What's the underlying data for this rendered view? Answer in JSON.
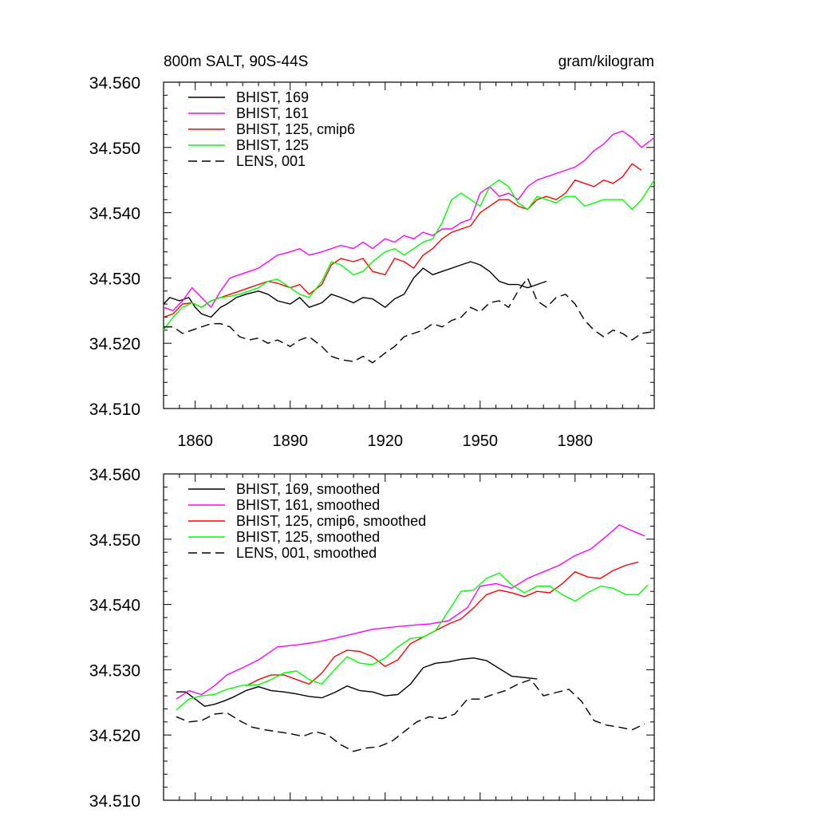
{
  "title_left": "800m SALT, 90S-44S",
  "title_right": "gram/kilogram",
  "chart_data": [
    {
      "type": "line",
      "xlim": [
        1850,
        2005
      ],
      "ylim": [
        34.51,
        34.56
      ],
      "xticks": [
        1860,
        1890,
        1920,
        1950,
        1980
      ],
      "yticks": [
        34.51,
        34.52,
        34.53,
        34.54,
        34.55,
        34.56
      ],
      "xtick_labels": [
        "1860",
        "1890",
        "1920",
        "1950",
        "1980"
      ],
      "ytick_labels": [
        "34.510",
        "34.520",
        "34.530",
        "34.540",
        "34.550",
        "34.560"
      ],
      "legend_position": "top-left",
      "series": [
        {
          "name": "BHIST, 169",
          "color": "#000000",
          "dash": "solid",
          "x": [
            1850,
            1852,
            1855,
            1858,
            1860,
            1862,
            1865,
            1868,
            1870,
            1873,
            1876,
            1880,
            1883,
            1886,
            1890,
            1893,
            1896,
            1900,
            1903,
            1906,
            1910,
            1913,
            1916,
            1920,
            1923,
            1926,
            1929,
            1932,
            1935,
            1938,
            1941,
            1944,
            1947,
            1950,
            1953,
            1956,
            1959,
            1962,
            1965,
            1968,
            1971
          ],
          "y": [
            34.526,
            34.527,
            34.5265,
            34.527,
            34.5255,
            34.5245,
            34.524,
            34.5255,
            34.526,
            34.527,
            34.5275,
            34.528,
            34.5275,
            34.5265,
            34.526,
            34.527,
            34.5255,
            34.5262,
            34.5275,
            34.527,
            34.5262,
            34.527,
            34.5268,
            34.5255,
            34.5268,
            34.5275,
            34.53,
            34.5315,
            34.5305,
            34.531,
            34.5315,
            34.532,
            34.5325,
            34.532,
            34.531,
            34.5295,
            34.529,
            34.529,
            34.5285,
            34.529,
            34.5295
          ]
        },
        {
          "name": "BHIST, 161",
          "color": "#ff00ff",
          "dash": "solid",
          "x": [
            1850,
            1853,
            1856,
            1859,
            1862,
            1865,
            1868,
            1871,
            1874,
            1877,
            1880,
            1883,
            1886,
            1890,
            1893,
            1896,
            1900,
            1903,
            1906,
            1910,
            1913,
            1916,
            1920,
            1923,
            1926,
            1929,
            1932,
            1935,
            1938,
            1941,
            1944,
            1947,
            1950,
            1953,
            1956,
            1959,
            1962,
            1965,
            1968,
            1971,
            1974,
            1977,
            1980,
            1983,
            1986,
            1989,
            1992,
            1995,
            1998,
            2001,
            2005
          ],
          "y": [
            34.5255,
            34.525,
            34.5265,
            34.5285,
            34.527,
            34.5255,
            34.528,
            34.53,
            34.5305,
            34.531,
            34.5315,
            34.5325,
            34.5335,
            34.534,
            34.5345,
            34.5335,
            34.534,
            34.5345,
            34.535,
            34.5345,
            34.5355,
            34.5345,
            34.536,
            34.5355,
            34.5365,
            34.536,
            34.537,
            34.5365,
            34.5375,
            34.5375,
            34.5385,
            34.539,
            34.543,
            34.544,
            34.5425,
            34.543,
            34.542,
            34.544,
            34.545,
            34.5455,
            34.546,
            34.5465,
            34.547,
            34.548,
            34.5495,
            34.5505,
            34.552,
            34.5525,
            34.5515,
            34.55,
            34.5515
          ]
        },
        {
          "name": "BHIST, 125, cmip6",
          "color": "#ff0000",
          "dash": "solid",
          "x": [
            1850,
            1853,
            1856,
            1859,
            1862,
            1865,
            1868,
            1871,
            1874,
            1877,
            1880,
            1883,
            1886,
            1890,
            1893,
            1896,
            1900,
            1903,
            1906,
            1910,
            1913,
            1916,
            1920,
            1923,
            1926,
            1929,
            1932,
            1935,
            1938,
            1941,
            1944,
            1947,
            1950,
            1953,
            1956,
            1959,
            1962,
            1965,
            1968,
            1971,
            1974,
            1977,
            1980,
            1983,
            1986,
            1989,
            1992,
            1995,
            1998,
            2001
          ],
          "y": [
            34.524,
            34.5245,
            34.526,
            34.5262,
            34.5255,
            34.5265,
            34.527,
            34.5275,
            34.528,
            34.5285,
            34.529,
            34.5295,
            34.5292,
            34.5285,
            34.529,
            34.5275,
            34.529,
            34.532,
            34.533,
            34.5325,
            34.533,
            34.531,
            34.5305,
            34.533,
            34.5325,
            34.5315,
            34.5335,
            34.5345,
            34.536,
            34.537,
            34.5375,
            34.538,
            34.54,
            34.541,
            34.542,
            34.542,
            34.541,
            34.5405,
            34.542,
            34.5425,
            34.542,
            34.543,
            34.545,
            34.5445,
            34.544,
            34.545,
            34.5445,
            34.5455,
            34.5475,
            34.5465
          ]
        },
        {
          "name": "BHIST, 125",
          "color": "#00ff00",
          "dash": "solid",
          "x": [
            1850,
            1853,
            1856,
            1859,
            1862,
            1865,
            1868,
            1871,
            1874,
            1877,
            1880,
            1883,
            1886,
            1890,
            1893,
            1896,
            1900,
            1903,
            1906,
            1910,
            1913,
            1916,
            1920,
            1923,
            1926,
            1929,
            1932,
            1935,
            1938,
            1941,
            1944,
            1947,
            1950,
            1953,
            1956,
            1959,
            1962,
            1965,
            1968,
            1971,
            1974,
            1977,
            1980,
            1983,
            1986,
            1989,
            1992,
            1995,
            1998,
            2001,
            2005
          ],
          "y": [
            34.522,
            34.524,
            34.5255,
            34.5262,
            34.5255,
            34.5265,
            34.527,
            34.5272,
            34.5275,
            34.528,
            34.5285,
            34.5295,
            34.5298,
            34.5285,
            34.5275,
            34.527,
            34.5295,
            34.5325,
            34.532,
            34.5305,
            34.531,
            34.5325,
            34.534,
            34.5345,
            34.5335,
            34.5345,
            34.5355,
            34.536,
            34.5385,
            34.542,
            34.543,
            34.542,
            34.541,
            34.544,
            34.545,
            34.544,
            34.5415,
            34.5405,
            34.5425,
            34.542,
            34.5415,
            34.5425,
            34.5425,
            34.541,
            34.5415,
            34.542,
            34.542,
            34.542,
            34.5405,
            34.542,
            34.545
          ]
        },
        {
          "name": "LENS, 001",
          "color": "#000000",
          "dash": "dashed",
          "x": [
            1850,
            1853,
            1856,
            1859,
            1862,
            1865,
            1868,
            1871,
            1874,
            1877,
            1880,
            1883,
            1886,
            1890,
            1893,
            1896,
            1900,
            1903,
            1906,
            1910,
            1913,
            1916,
            1920,
            1923,
            1926,
            1929,
            1932,
            1935,
            1938,
            1941,
            1944,
            1947,
            1950,
            1953,
            1956,
            1959,
            1962,
            1965,
            1968,
            1971,
            1974,
            1977,
            1980,
            1983,
            1986,
            1989,
            1992,
            1995,
            1998,
            2001,
            2005
          ],
          "y": [
            34.5225,
            34.5225,
            34.5215,
            34.522,
            34.5225,
            34.523,
            34.523,
            34.5225,
            34.521,
            34.5205,
            34.5208,
            34.52,
            34.5205,
            34.5195,
            34.5205,
            34.521,
            34.5195,
            34.518,
            34.5175,
            34.5172,
            34.518,
            34.517,
            34.5185,
            34.5195,
            34.521,
            34.5215,
            34.522,
            34.523,
            34.5225,
            34.5235,
            34.524,
            34.5255,
            34.5248,
            34.5262,
            34.5265,
            34.5255,
            34.528,
            34.53,
            34.5265,
            34.5255,
            34.527,
            34.5275,
            34.526,
            34.5235,
            34.522,
            34.521,
            34.522,
            34.5215,
            34.5205,
            34.5215,
            34.5218
          ]
        }
      ]
    },
    {
      "type": "line",
      "xlim": [
        1850,
        2005
      ],
      "ylim": [
        34.51,
        34.56
      ],
      "xticks": [
        1860,
        1890,
        1920,
        1950,
        1980
      ],
      "yticks": [
        34.51,
        34.52,
        34.53,
        34.54,
        34.55,
        34.56
      ],
      "xtick_labels": [],
      "ytick_labels": [
        "34.510",
        "34.520",
        "34.530",
        "34.540",
        "34.550",
        "34.560"
      ],
      "legend_position": "top-left",
      "series": [
        {
          "name": "BHIST, 169, smoothed",
          "color": "#000000",
          "dash": "solid",
          "x": [
            1854,
            1857,
            1860,
            1863,
            1866,
            1869,
            1872,
            1876,
            1880,
            1884,
            1888,
            1892,
            1896,
            1900,
            1904,
            1908,
            1912,
            1916,
            1920,
            1924,
            1928,
            1932,
            1936,
            1940,
            1944,
            1948,
            1952,
            1956,
            1960,
            1964,
            1968
          ],
          "y": [
            34.5266,
            34.5266,
            34.5255,
            34.5244,
            34.5247,
            34.5252,
            34.5258,
            34.5268,
            34.5274,
            34.5268,
            34.5266,
            34.5263,
            34.5259,
            34.5257,
            34.5265,
            34.5275,
            34.5268,
            34.5266,
            34.526,
            34.5262,
            34.5278,
            34.5303,
            34.531,
            34.5312,
            34.5316,
            34.5318,
            34.5314,
            34.5302,
            34.529,
            34.5288,
            34.5286
          ]
        },
        {
          "name": "BHIST, 161, smoothed",
          "color": "#ff00ff",
          "dash": "solid",
          "x": [
            1854,
            1858,
            1862,
            1866,
            1870,
            1875,
            1880,
            1886,
            1892,
            1898,
            1904,
            1910,
            1916,
            1922,
            1928,
            1934,
            1940,
            1946,
            1950,
            1955,
            1960,
            1965,
            1970,
            1975,
            1980,
            1985,
            1990,
            1994,
            1997,
            2002
          ],
          "y": [
            34.5255,
            34.5268,
            34.5262,
            34.5275,
            34.5292,
            34.5303,
            34.5315,
            34.5335,
            34.5338,
            34.5342,
            34.5348,
            34.5355,
            34.5362,
            34.5365,
            34.5368,
            34.537,
            34.5375,
            34.5395,
            34.5428,
            34.5432,
            34.5425,
            34.544,
            34.545,
            34.546,
            34.5475,
            34.5485,
            34.5505,
            34.5522,
            34.5515,
            34.5505
          ]
        },
        {
          "name": "BHIST, 125, cmip6, smoothed",
          "color": "#ff0000",
          "dash": "solid",
          "x": [
            1876,
            1880,
            1884,
            1888,
            1892,
            1896,
            1900,
            1904,
            1908,
            1912,
            1916,
            1920,
            1924,
            1928,
            1932,
            1936,
            1940,
            1944,
            1948,
            1952,
            1956,
            1960,
            1964,
            1968,
            1972,
            1976,
            1980,
            1984,
            1988,
            1992,
            1996,
            2000
          ],
          "y": [
            34.5275,
            34.5285,
            34.5292,
            34.5292,
            34.5285,
            34.5278,
            34.5295,
            34.532,
            34.533,
            34.5328,
            34.532,
            34.5305,
            34.5315,
            34.534,
            34.535,
            34.536,
            34.537,
            34.5378,
            34.5395,
            34.5415,
            34.5422,
            34.5418,
            34.5412,
            34.542,
            34.5418,
            34.5432,
            34.545,
            34.5442,
            34.544,
            34.5452,
            34.546,
            34.5465
          ]
        },
        {
          "name": "BHIST, 125, smoothed",
          "color": "#00ff00",
          "dash": "solid",
          "x": [
            1854,
            1858,
            1862,
            1866,
            1870,
            1875,
            1880,
            1884,
            1888,
            1892,
            1896,
            1900,
            1904,
            1908,
            1912,
            1916,
            1920,
            1924,
            1928,
            1932,
            1936,
            1940,
            1944,
            1948,
            1952,
            1956,
            1960,
            1964,
            1968,
            1972,
            1976,
            1980,
            1984,
            1988,
            1992,
            1996,
            2000,
            2003
          ],
          "y": [
            34.5238,
            34.5255,
            34.526,
            34.5262,
            34.527,
            34.5276,
            34.5277,
            34.5285,
            34.5295,
            34.5298,
            34.5285,
            34.5278,
            34.53,
            34.532,
            34.531,
            34.5308,
            34.5318,
            34.5335,
            34.5348,
            34.535,
            34.536,
            34.539,
            34.542,
            34.5422,
            34.544,
            34.5448,
            34.543,
            34.5418,
            34.5428,
            34.5428,
            34.5415,
            34.5405,
            34.5418,
            34.5428,
            34.5425,
            34.5415,
            34.5415,
            34.543
          ]
        },
        {
          "name": "LENS, 001, smoothed",
          "color": "#000000",
          "dash": "dashed",
          "x": [
            1854,
            1858,
            1862,
            1866,
            1870,
            1874,
            1878,
            1882,
            1886,
            1890,
            1894,
            1898,
            1902,
            1906,
            1910,
            1914,
            1918,
            1922,
            1926,
            1930,
            1934,
            1938,
            1942,
            1946,
            1950,
            1954,
            1958,
            1962,
            1966,
            1970,
            1974,
            1978,
            1982,
            1986,
            1990,
            1994,
            1998,
            2002
          ],
          "y": [
            34.5228,
            34.522,
            34.5222,
            34.5232,
            34.5234,
            34.5222,
            34.5212,
            34.5208,
            34.5205,
            34.5202,
            34.5198,
            34.5205,
            34.52,
            34.5185,
            34.5175,
            34.518,
            34.5182,
            34.519,
            34.5205,
            34.522,
            34.5228,
            34.5225,
            34.5232,
            34.5255,
            34.5255,
            34.5262,
            34.5268,
            34.5278,
            34.5285,
            34.526,
            34.5265,
            34.527,
            34.5252,
            34.5222,
            34.5215,
            34.5212,
            34.5208,
            34.5217
          ]
        }
      ]
    }
  ]
}
